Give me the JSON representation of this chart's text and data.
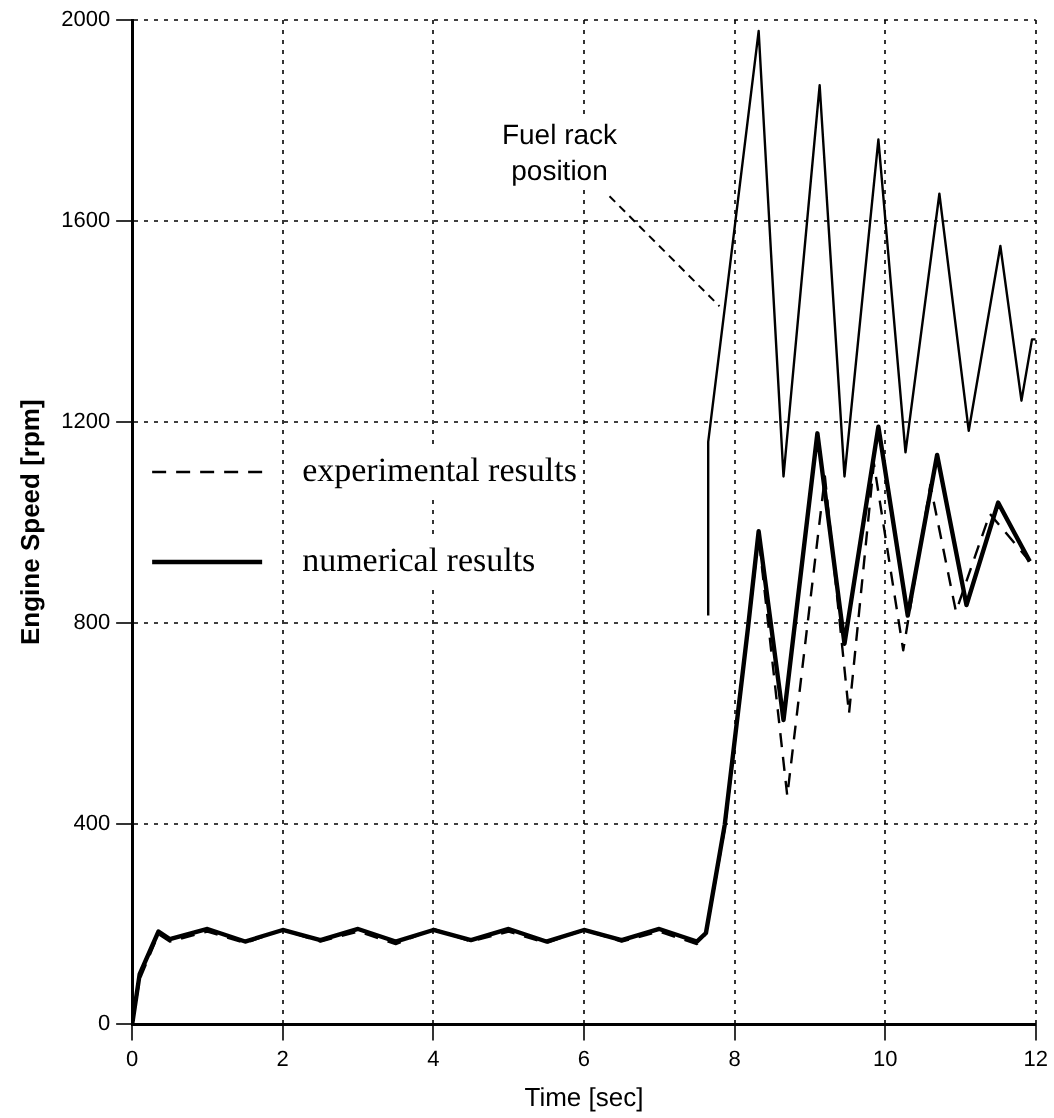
{
  "chart_data": {
    "type": "line",
    "xlabel": "Time [sec]",
    "ylabel": "Engine Speed [rpm]",
    "xlim": [
      0,
      12
    ],
    "xticks": [
      0,
      2,
      4,
      6,
      8,
      10,
      12
    ],
    "ylim": [
      0,
      2000
    ],
    "yticks": [
      0,
      400,
      800,
      1200,
      1600,
      2000
    ],
    "grid": true,
    "legend": "left",
    "marker": "none",
    "series": [
      {
        "name": "experimental results",
        "color": "#000000",
        "line_style": "dashed",
        "x": [
          0,
          0.1,
          0.35,
          0.5,
          1,
          1.5,
          2,
          2.5,
          3,
          3.5,
          4,
          4.5,
          5,
          5.5,
          6,
          6.5,
          7,
          7.5,
          7.62,
          7.87,
          8.18,
          8.32,
          8.7,
          9.2,
          9.52,
          9.85,
          10.24,
          10.6,
          10.94,
          11.39,
          11.92
        ],
        "values": [
          0,
          90,
          180,
          165,
          185,
          162,
          188,
          165,
          185,
          160,
          190,
          165,
          185,
          162,
          188,
          165,
          185,
          160,
          180,
          390,
          790,
          970,
          455,
          1091,
          619,
          1117,
          745,
          1074,
          822,
          1017,
          922
        ]
      },
      {
        "name": "numerical results",
        "color": "#000000",
        "line_style": "solid",
        "x": [
          0,
          0.1,
          0.35,
          0.5,
          1,
          1.5,
          2,
          2.5,
          3,
          3.5,
          4,
          4.5,
          5,
          5.5,
          6,
          6.5,
          7,
          7.5,
          7.62,
          7.87,
          8.18,
          8.32,
          8.65,
          9.1,
          9.46,
          9.91,
          10.3,
          10.69,
          11.08,
          11.5,
          11.92
        ],
        "values": [
          0,
          100,
          185,
          170,
          190,
          165,
          188,
          168,
          190,
          165,
          188,
          168,
          190,
          165,
          188,
          168,
          190,
          165,
          182,
          398,
          792,
          982,
          606,
          1177,
          758,
          1190,
          814,
          1134,
          835,
          1039,
          922
        ]
      },
      {
        "color": "#000000",
        "line_style": "solid",
        "x": [
          7.65,
          7.65,
          7.9,
          8.32,
          8.65,
          9.13,
          9.46,
          9.91,
          10.27,
          10.72,
          11.11,
          11.53,
          11.81,
          11.95,
          12
        ],
        "values": [
          814,
          1160,
          1463,
          1978,
          1091,
          1870,
          1091,
          1762,
          1139,
          1654,
          1182,
          1550,
          1242,
          1364,
          1364
        ]
      }
    ],
    "annotations": [
      {
        "text": "Fuel rack position",
        "x": 7.8,
        "y": 1430
      }
    ]
  }
}
